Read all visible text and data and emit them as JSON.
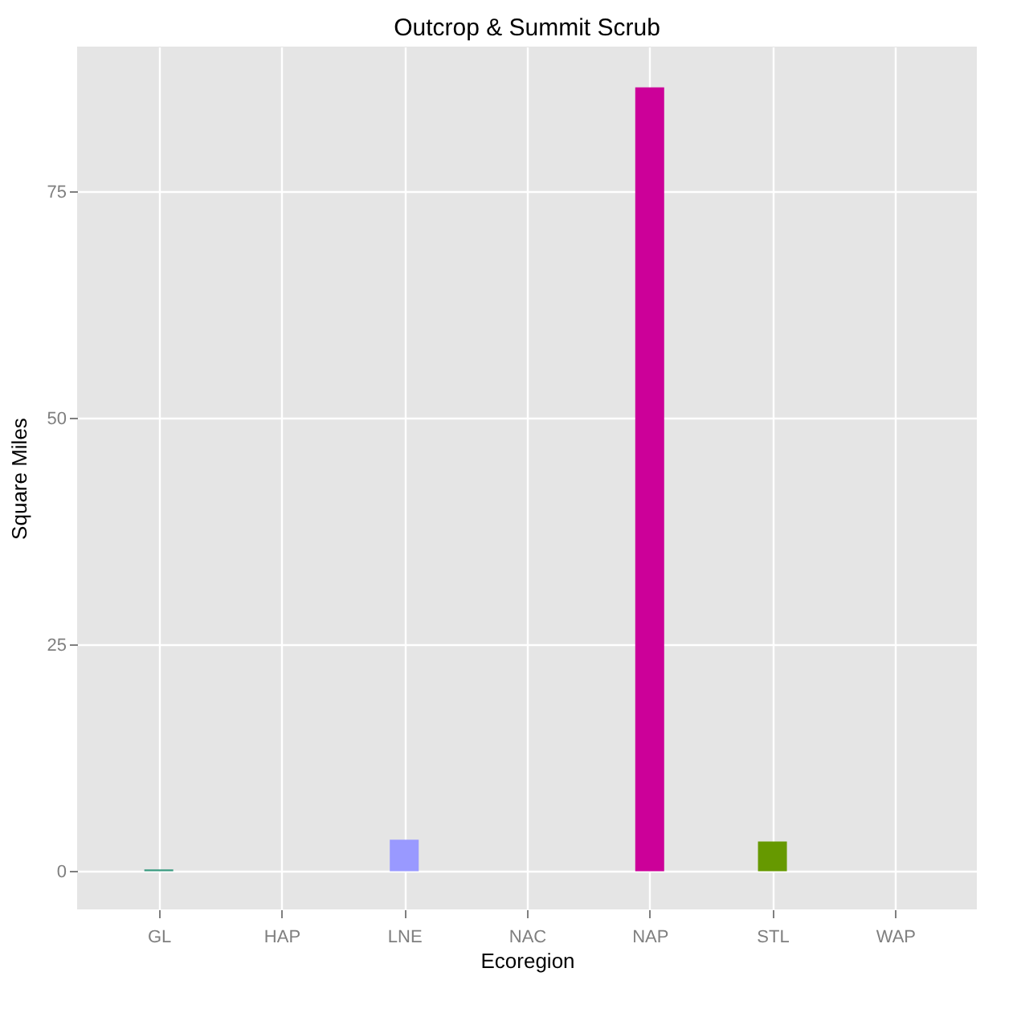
{
  "chart_data": {
    "type": "bar",
    "title": "Outcrop & Summit Scrub",
    "xlabel": "Ecoregion",
    "ylabel": "Square Miles",
    "categories": [
      "GL",
      "HAP",
      "LNE",
      "NAC",
      "NAP",
      "STL",
      "WAP"
    ],
    "values": [
      0.2,
      0,
      3.5,
      0,
      86.5,
      3.3,
      0
    ],
    "colors": [
      "#3a9a80",
      "#e06060",
      "#9999ff",
      "#c0a000",
      "#cc0099",
      "#669900",
      "#9966cc"
    ],
    "ylim": [
      -4.2,
      91
    ],
    "yticks": [
      0,
      25,
      50,
      75
    ],
    "grid": true
  }
}
